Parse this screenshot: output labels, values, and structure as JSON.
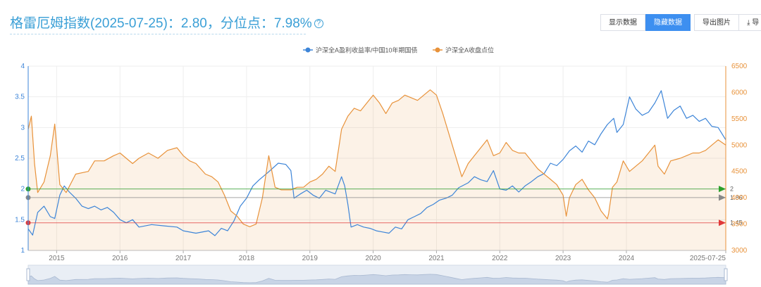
{
  "header": {
    "title": "格雷厄姆指数(2025-07-25)：2.80，分位点：7.98%",
    "help_icon": "?"
  },
  "toolbar": {
    "show_data_label": "显示数据",
    "hide_data_label": "隐藏数据",
    "export_image_label": "导出图片",
    "export_partial_label": "导",
    "export_partial_icon": "⤓"
  },
  "colors": {
    "blue": "#3d85d8",
    "orange": "#e8923a",
    "green": "#2ca02c",
    "gray": "#888888",
    "red": "#e03a3a"
  },
  "chart_data": {
    "type": "line",
    "legend": [
      "沪深全A盈利收益率/中国10年期国债",
      "沪深全A收盘点位"
    ],
    "legend_position": "top-center",
    "x_ticks": [
      "2015",
      "2016",
      "2017",
      "2018",
      "2019",
      "2020",
      "2021",
      "2022",
      "2023",
      "2024",
      "2025-07-25"
    ],
    "x_range": [
      2014.55,
      2025.57
    ],
    "y_left": {
      "min": 1,
      "max": 4,
      "ticks": [
        "1",
        "1.5",
        "2",
        "2.5",
        "3",
        "3.5",
        "4"
      ]
    },
    "y_right": {
      "min": 3000,
      "max": 6500,
      "ticks": [
        "3000",
        "3500",
        "4000",
        "4500",
        "5000",
        "5500",
        "6000",
        "6500"
      ]
    },
    "grid": true,
    "series": [
      {
        "name": "沪深全A盈利收益率/中国10年期国债",
        "axis": "left",
        "points": [
          [
            2014.55,
            1.35
          ],
          [
            2014.62,
            1.25
          ],
          [
            2014.7,
            1.62
          ],
          [
            2014.8,
            1.72
          ],
          [
            2014.9,
            1.55
          ],
          [
            2014.97,
            1.52
          ],
          [
            2015.05,
            1.9
          ],
          [
            2015.12,
            2.05
          ],
          [
            2015.2,
            1.95
          ],
          [
            2015.3,
            1.85
          ],
          [
            2015.4,
            1.72
          ],
          [
            2015.5,
            1.68
          ],
          [
            2015.6,
            1.72
          ],
          [
            2015.7,
            1.66
          ],
          [
            2015.8,
            1.7
          ],
          [
            2015.9,
            1.62
          ],
          [
            2016.0,
            1.5
          ],
          [
            2016.1,
            1.45
          ],
          [
            2016.2,
            1.5
          ],
          [
            2016.3,
            1.38
          ],
          [
            2016.5,
            1.42
          ],
          [
            2016.7,
            1.4
          ],
          [
            2016.9,
            1.38
          ],
          [
            2017.0,
            1.32
          ],
          [
            2017.2,
            1.28
          ],
          [
            2017.4,
            1.32
          ],
          [
            2017.5,
            1.24
          ],
          [
            2017.6,
            1.36
          ],
          [
            2017.7,
            1.32
          ],
          [
            2017.8,
            1.48
          ],
          [
            2017.9,
            1.72
          ],
          [
            2018.0,
            1.85
          ],
          [
            2018.1,
            2.05
          ],
          [
            2018.2,
            2.15
          ],
          [
            2018.35,
            2.28
          ],
          [
            2018.5,
            2.42
          ],
          [
            2018.62,
            2.4
          ],
          [
            2018.7,
            2.3
          ],
          [
            2018.75,
            1.85
          ],
          [
            2018.85,
            1.92
          ],
          [
            2018.95,
            1.98
          ],
          [
            2019.05,
            1.9
          ],
          [
            2019.15,
            1.85
          ],
          [
            2019.25,
            1.98
          ],
          [
            2019.4,
            1.92
          ],
          [
            2019.5,
            2.2
          ],
          [
            2019.55,
            2.05
          ],
          [
            2019.6,
            1.75
          ],
          [
            2019.65,
            1.38
          ],
          [
            2019.75,
            1.42
          ],
          [
            2019.85,
            1.38
          ],
          [
            2019.95,
            1.36
          ],
          [
            2020.05,
            1.32
          ],
          [
            2020.15,
            1.3
          ],
          [
            2020.25,
            1.28
          ],
          [
            2020.35,
            1.38
          ],
          [
            2020.45,
            1.35
          ],
          [
            2020.55,
            1.5
          ],
          [
            2020.65,
            1.55
          ],
          [
            2020.75,
            1.6
          ],
          [
            2020.85,
            1.7
          ],
          [
            2020.95,
            1.75
          ],
          [
            2021.05,
            1.82
          ],
          [
            2021.15,
            1.85
          ],
          [
            2021.25,
            1.9
          ],
          [
            2021.35,
            2.02
          ],
          [
            2021.5,
            2.1
          ],
          [
            2021.6,
            2.2
          ],
          [
            2021.7,
            2.15
          ],
          [
            2021.8,
            2.12
          ],
          [
            2021.9,
            2.3
          ],
          [
            2022.0,
            2.0
          ],
          [
            2022.1,
            1.98
          ],
          [
            2022.2,
            2.05
          ],
          [
            2022.3,
            1.95
          ],
          [
            2022.4,
            2.05
          ],
          [
            2022.5,
            2.12
          ],
          [
            2022.6,
            2.2
          ],
          [
            2022.7,
            2.25
          ],
          [
            2022.8,
            2.42
          ],
          [
            2022.9,
            2.38
          ],
          [
            2023.0,
            2.48
          ],
          [
            2023.1,
            2.62
          ],
          [
            2023.2,
            2.7
          ],
          [
            2023.3,
            2.6
          ],
          [
            2023.4,
            2.78
          ],
          [
            2023.5,
            2.72
          ],
          [
            2023.6,
            2.9
          ],
          [
            2023.7,
            3.05
          ],
          [
            2023.8,
            3.15
          ],
          [
            2023.85,
            2.92
          ],
          [
            2023.95,
            3.05
          ],
          [
            2024.05,
            3.5
          ],
          [
            2024.15,
            3.3
          ],
          [
            2024.25,
            3.2
          ],
          [
            2024.35,
            3.25
          ],
          [
            2024.45,
            3.4
          ],
          [
            2024.55,
            3.6
          ],
          [
            2024.65,
            3.15
          ],
          [
            2024.75,
            3.28
          ],
          [
            2024.85,
            3.35
          ],
          [
            2024.95,
            3.15
          ],
          [
            2025.05,
            3.2
          ],
          [
            2025.15,
            3.1
          ],
          [
            2025.25,
            3.15
          ],
          [
            2025.35,
            3.02
          ],
          [
            2025.45,
            3.0
          ],
          [
            2025.57,
            2.8
          ]
        ]
      },
      {
        "name": "沪深全A收盘点位",
        "axis": "right",
        "fill": true,
        "points": [
          [
            2014.55,
            5300
          ],
          [
            2014.6,
            5550
          ],
          [
            2014.65,
            4650
          ],
          [
            2014.7,
            4100
          ],
          [
            2014.8,
            4300
          ],
          [
            2014.9,
            4800
          ],
          [
            2014.97,
            5400
          ],
          [
            2015.05,
            4250
          ],
          [
            2015.15,
            4100
          ],
          [
            2015.3,
            4450
          ],
          [
            2015.5,
            4500
          ],
          [
            2015.6,
            4700
          ],
          [
            2015.75,
            4700
          ],
          [
            2015.9,
            4800
          ],
          [
            2016.0,
            4850
          ],
          [
            2016.1,
            4750
          ],
          [
            2016.2,
            4650
          ],
          [
            2016.3,
            4750
          ],
          [
            2016.45,
            4850
          ],
          [
            2016.6,
            4750
          ],
          [
            2016.75,
            4900
          ],
          [
            2016.9,
            4950
          ],
          [
            2017.0,
            4800
          ],
          [
            2017.1,
            4700
          ],
          [
            2017.2,
            4650
          ],
          [
            2017.35,
            4450
          ],
          [
            2017.45,
            4400
          ],
          [
            2017.55,
            4300
          ],
          [
            2017.65,
            4050
          ],
          [
            2017.75,
            3750
          ],
          [
            2017.85,
            3650
          ],
          [
            2017.95,
            3500
          ],
          [
            2018.05,
            3450
          ],
          [
            2018.15,
            3500
          ],
          [
            2018.25,
            4000
          ],
          [
            2018.35,
            4800
          ],
          [
            2018.45,
            4200
          ],
          [
            2018.55,
            4150
          ],
          [
            2018.7,
            4150
          ],
          [
            2018.8,
            4200
          ],
          [
            2018.9,
            4200
          ],
          [
            2019.0,
            4300
          ],
          [
            2019.1,
            4350
          ],
          [
            2019.2,
            4450
          ],
          [
            2019.3,
            4600
          ],
          [
            2019.4,
            4500
          ],
          [
            2019.5,
            5300
          ],
          [
            2019.6,
            5550
          ],
          [
            2019.7,
            5700
          ],
          [
            2019.8,
            5650
          ],
          [
            2019.9,
            5800
          ],
          [
            2020.0,
            5950
          ],
          [
            2020.1,
            5800
          ],
          [
            2020.2,
            5600
          ],
          [
            2020.3,
            5800
          ],
          [
            2020.4,
            5850
          ],
          [
            2020.5,
            5950
          ],
          [
            2020.6,
            5900
          ],
          [
            2020.7,
            5850
          ],
          [
            2020.8,
            5950
          ],
          [
            2020.9,
            6050
          ],
          [
            2021.0,
            5950
          ],
          [
            2021.1,
            5600
          ],
          [
            2021.2,
            5200
          ],
          [
            2021.3,
            4800
          ],
          [
            2021.4,
            4400
          ],
          [
            2021.5,
            4650
          ],
          [
            2021.6,
            4800
          ],
          [
            2021.7,
            4950
          ],
          [
            2021.8,
            5100
          ],
          [
            2021.9,
            4800
          ],
          [
            2022.0,
            4850
          ],
          [
            2022.1,
            5050
          ],
          [
            2022.2,
            4900
          ],
          [
            2022.3,
            4850
          ],
          [
            2022.4,
            4850
          ],
          [
            2022.5,
            4700
          ],
          [
            2022.6,
            4550
          ],
          [
            2022.7,
            4450
          ],
          [
            2022.8,
            4350
          ],
          [
            2022.9,
            4250
          ],
          [
            2023.0,
            4050
          ],
          [
            2023.05,
            3650
          ],
          [
            2023.1,
            4000
          ],
          [
            2023.2,
            4250
          ],
          [
            2023.3,
            4350
          ],
          [
            2023.4,
            4150
          ],
          [
            2023.5,
            4000
          ],
          [
            2023.6,
            3750
          ],
          [
            2023.7,
            3600
          ],
          [
            2023.72,
            3700
          ],
          [
            2023.78,
            4200
          ],
          [
            2023.85,
            4300
          ],
          [
            2023.95,
            4700
          ],
          [
            2024.05,
            4500
          ],
          [
            2024.15,
            4600
          ],
          [
            2024.25,
            4700
          ],
          [
            2024.35,
            4850
          ],
          [
            2024.45,
            5000
          ],
          [
            2024.5,
            4600
          ],
          [
            2024.6,
            4450
          ],
          [
            2024.7,
            4700
          ],
          [
            2024.85,
            4750
          ],
          [
            2024.95,
            4800
          ],
          [
            2025.05,
            4850
          ],
          [
            2025.15,
            4850
          ],
          [
            2025.25,
            4900
          ],
          [
            2025.35,
            5000
          ],
          [
            2025.45,
            5100
          ],
          [
            2025.57,
            5000
          ]
        ]
      }
    ],
    "reference_lines": [
      {
        "label": "2",
        "value": 2,
        "color": "green"
      },
      {
        "label": "1.86",
        "value": 1.86,
        "color": "gray"
      },
      {
        "label": "1.45",
        "value": 1.45,
        "color": "red"
      }
    ]
  }
}
